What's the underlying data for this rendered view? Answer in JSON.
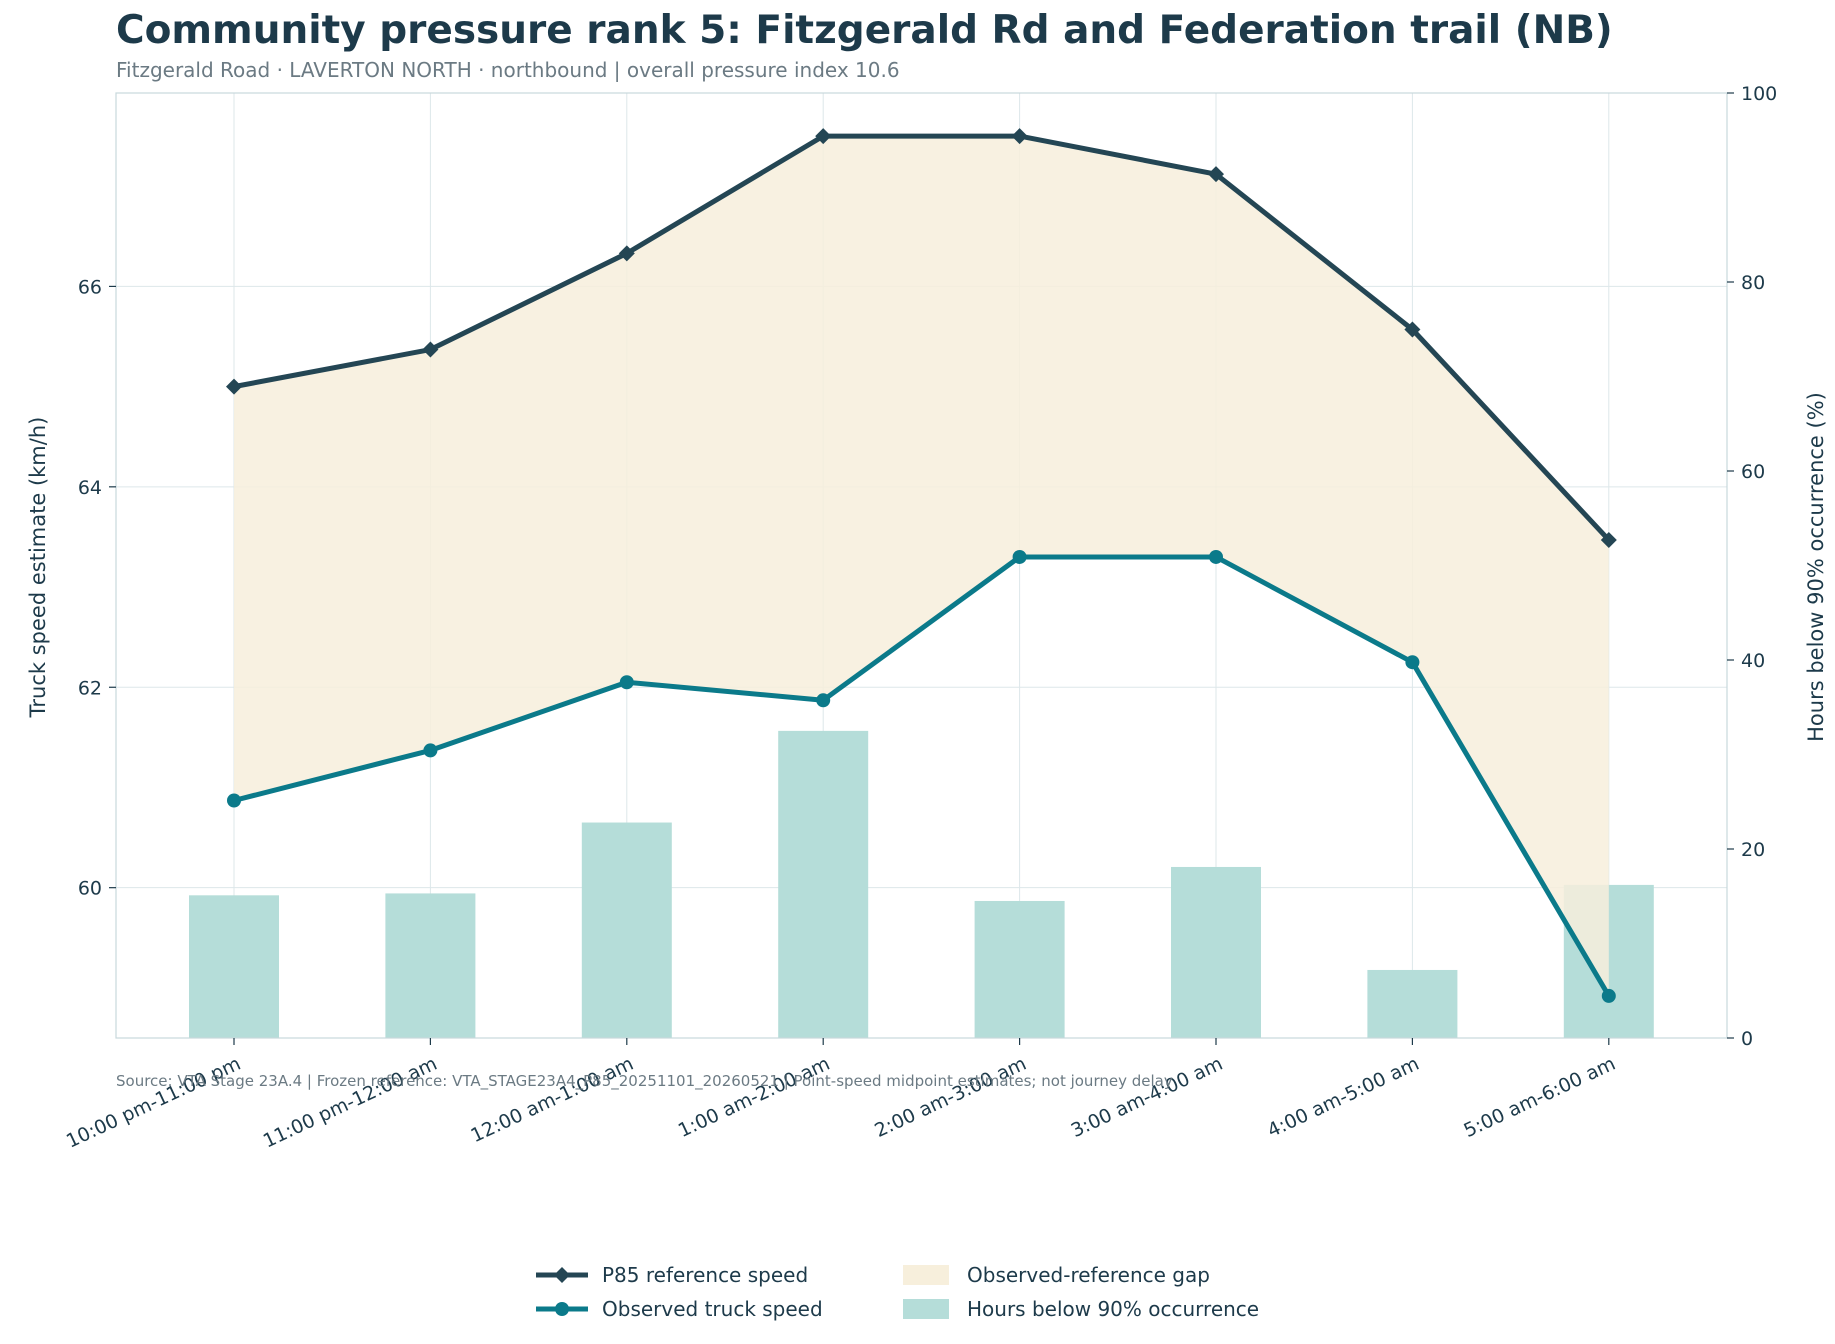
{
  "title": "Community pressure rank 5: Fitzgerald Rd and Federation trail (NB)",
  "subtitle": "Fitzgerald Road · LAVERTON NORTH · northbound | overall pressure index 10.6",
  "source_note": "Source: VTA Stage 23A.4 | Frozen reference: VTA_STAGE23A4_P85_20251101_20260521 | Point-speed midpoint estimates; not journey delay",
  "colors": {
    "reference": "#244654",
    "observed": "#0b7a8a",
    "gap_fill": "#f7efdc",
    "bars": "#b5ddd9",
    "grid": "#dde7ea",
    "axis_spine": "#c8d8dc",
    "text": "#1d3a4a"
  },
  "chart_data": {
    "type": "line",
    "categories": [
      "10:00 pm-11:00 pm",
      "11:00 pm-12:00 am",
      "12:00 am-1:00 am",
      "1:00 am-2:00 am",
      "2:00 am-3:00 am",
      "3:00 am-4:00 am",
      "4:00 am-5:00 am",
      "5:00 am-6:00 am"
    ],
    "series": [
      {
        "name": "P85 reference speed",
        "axis": "left",
        "kind": "line",
        "marker": "diamond",
        "values": [
          65.0,
          65.37,
          66.33,
          67.5,
          67.5,
          67.12,
          65.57,
          63.47
        ]
      },
      {
        "name": "Observed truck speed",
        "axis": "left",
        "kind": "line",
        "marker": "circle",
        "values": [
          60.87,
          61.37,
          62.05,
          61.87,
          63.3,
          63.3,
          62.25,
          58.92
        ]
      },
      {
        "name": "Hours below 90% occurrence",
        "axis": "right",
        "kind": "bar",
        "values": [
          15.1,
          15.3,
          22.8,
          32.5,
          14.5,
          18.1,
          7.2,
          16.2
        ]
      }
    ],
    "fill_between": {
      "name": "Observed-reference gap",
      "upper": "P85 reference speed",
      "lower": "Observed truck speed"
    },
    "ylabel": "Truck speed estimate (km/h)",
    "y2label": "Hours below 90% occurrence (%)",
    "ylim": [
      58.5,
      67.93
    ],
    "yticks": [
      60,
      62,
      64,
      66
    ],
    "y2lim": [
      0,
      100
    ],
    "y2ticks": [
      0,
      20,
      40,
      60,
      80,
      100
    ],
    "grid": true,
    "legend_position": "bottom-center",
    "legend": [
      "P85 reference speed",
      "Observed truck speed",
      "Observed-reference gap",
      "Hours below 90% occurrence"
    ]
  }
}
